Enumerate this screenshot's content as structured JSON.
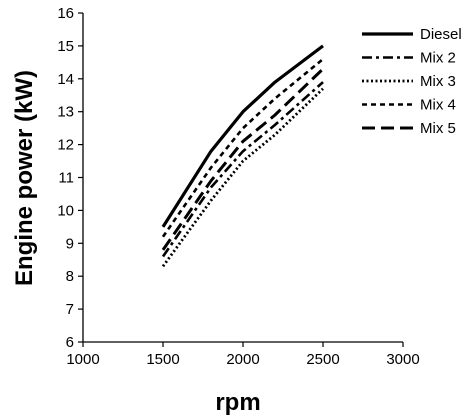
{
  "chart_data": {
    "type": "line",
    "title": "",
    "xlabel": "rpm",
    "ylabel": "Engine power (kW)",
    "xlim": [
      1000,
      3000
    ],
    "ylim": [
      6,
      16
    ],
    "xticks": [
      1000,
      1500,
      2000,
      2500,
      3000
    ],
    "yticks": [
      6,
      7,
      8,
      9,
      10,
      11,
      12,
      13,
      14,
      15,
      16
    ],
    "grid": false,
    "legend_position": "top-right",
    "x": [
      1500,
      1800,
      2000,
      2200,
      2500
    ],
    "series": [
      {
        "name": "Diesel",
        "dash": "solid",
        "values": [
          9.5,
          11.8,
          13.0,
          13.9,
          15.0
        ]
      },
      {
        "name": "Mix 2",
        "dash": "dashdot",
        "values": [
          8.6,
          10.7,
          11.8,
          12.6,
          13.9
        ]
      },
      {
        "name": "Mix 3",
        "dash": "dotted",
        "values": [
          8.3,
          10.3,
          11.5,
          12.3,
          13.7
        ]
      },
      {
        "name": "Mix 4",
        "dash": "dashed",
        "values": [
          9.2,
          11.3,
          12.5,
          13.4,
          14.6
        ]
      },
      {
        "name": "Mix 5",
        "dash": "longdash",
        "values": [
          8.8,
          10.9,
          12.1,
          12.9,
          14.3
        ]
      }
    ],
    "line_color": "#000000"
  }
}
